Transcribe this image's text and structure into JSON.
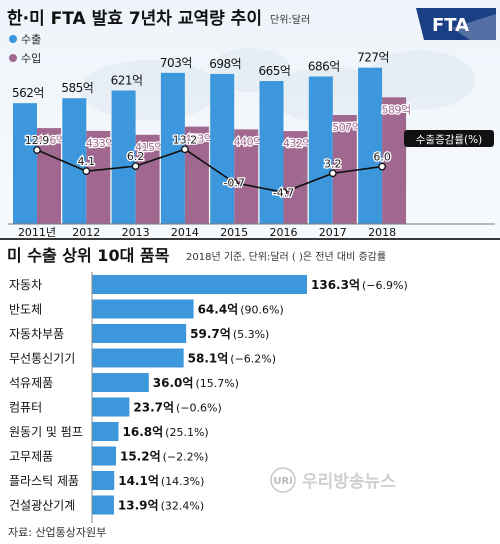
{
  "chart_data": [
    {
      "type": "bar",
      "title": "한·미 FTA 발효 7년차 교역량 추이",
      "unit_note": "단위:달러",
      "logo": "FTA",
      "legend": [
        {
          "name": "수출",
          "color": "#3d97dc"
        },
        {
          "name": "수입",
          "color": "#a0688f"
        }
      ],
      "categories": [
        "2011년",
        "2012",
        "2013",
        "2014",
        "2015",
        "2016",
        "2017",
        "2018"
      ],
      "series": [
        {
          "name": "수출",
          "values": [
            562,
            585,
            621,
            703,
            698,
            665,
            686,
            727
          ],
          "labels": [
            "562억",
            "585억",
            "621억",
            "703억",
            "698억",
            "665억",
            "686억",
            "727억"
          ]
        },
        {
          "name": "수입",
          "values": [
            446,
            433,
            415,
            453,
            440,
            432,
            507,
            589
          ],
          "labels": [
            "446억",
            "433억",
            "415억",
            "453억",
            "440억",
            "432억",
            "507억",
            "589억"
          ]
        }
      ],
      "line_series": {
        "name": "수출증감률(%)",
        "values": [
          12.9,
          4.1,
          6.2,
          13.2,
          -0.7,
          -4.7,
          3.2,
          6.0
        ],
        "labels": [
          "12.9",
          "4.1",
          "6.2",
          "13.2",
          "-0.7",
          "-4.7",
          "3.2",
          "6.0"
        ]
      }
    },
    {
      "type": "bar",
      "orientation": "horizontal",
      "title": "미 수출 상위 10대 품목",
      "subtitle": "2018년 기준, 단위:달러 ( )은 전년 대비 증감률",
      "categories": [
        "자동차",
        "반도체",
        "자동차부품",
        "무선통신기기",
        "석유제품",
        "컴퓨터",
        "원동기 및 펌프",
        "고무제품",
        "플라스틱 제품",
        "건설광산기계"
      ],
      "values": [
        136.3,
        64.4,
        59.7,
        58.1,
        36.0,
        23.7,
        16.8,
        15.2,
        14.1,
        13.9
      ],
      "value_labels": [
        "136.3억",
        "64.4억",
        "59.7억",
        "58.1억",
        "36.0억",
        "23.7억",
        "16.8억",
        "15.2억",
        "14.1억",
        "13.9억"
      ],
      "change_labels": [
        "(−6.9%)",
        "(90.6%)",
        "(5.3%)",
        "(−6.2%)",
        "(15.7%)",
        "(−0.6%)",
        "(25.1%)",
        "(−2.2%)",
        "(14.3%)",
        "(32.4%)"
      ],
      "bar_color": "#3d97dc"
    }
  ],
  "source": "자료: 산업통상자원부",
  "watermark": {
    "brand": "우리방송뉴스",
    "mark": "URi"
  }
}
